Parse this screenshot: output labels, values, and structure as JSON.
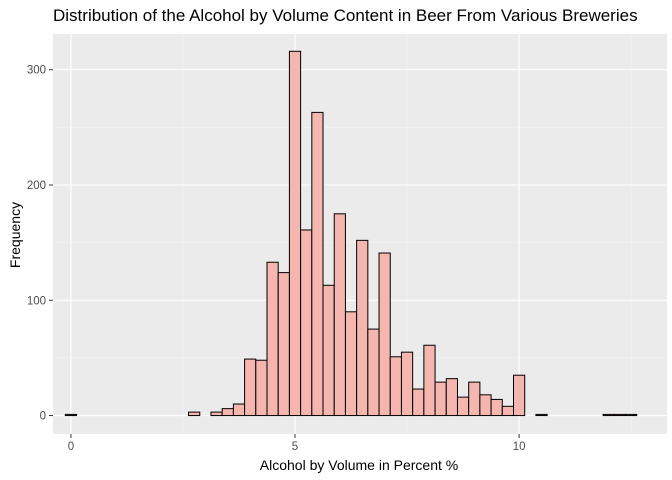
{
  "chart_data": {
    "type": "bar",
    "title": "Distribution of the Alcohol by Volume Content in Beer From Various Breweries",
    "xlabel": "Alcohol by Volume in Percent %",
    "ylabel": "Frequency",
    "xlim": [
      -0.4,
      13.3
    ],
    "ylim": [
      -16,
      331
    ],
    "xticks": [
      0,
      5,
      10
    ],
    "yticks": [
      0,
      100,
      200,
      300
    ],
    "grid": true,
    "bin_width": 0.25,
    "bins": [
      {
        "x": 0.0,
        "count": 1
      },
      {
        "x": 2.75,
        "count": 3
      },
      {
        "x": 3.25,
        "count": 3
      },
      {
        "x": 3.5,
        "count": 6
      },
      {
        "x": 3.75,
        "count": 10
      },
      {
        "x": 4.0,
        "count": 49
      },
      {
        "x": 4.25,
        "count": 48
      },
      {
        "x": 4.5,
        "count": 133
      },
      {
        "x": 4.75,
        "count": 124
      },
      {
        "x": 5.0,
        "count": 316
      },
      {
        "x": 5.25,
        "count": 161
      },
      {
        "x": 5.5,
        "count": 263
      },
      {
        "x": 5.75,
        "count": 113
      },
      {
        "x": 6.0,
        "count": 175
      },
      {
        "x": 6.25,
        "count": 90
      },
      {
        "x": 6.5,
        "count": 152
      },
      {
        "x": 6.75,
        "count": 75
      },
      {
        "x": 7.0,
        "count": 141
      },
      {
        "x": 7.25,
        "count": 51
      },
      {
        "x": 7.5,
        "count": 55
      },
      {
        "x": 7.75,
        "count": 23
      },
      {
        "x": 8.0,
        "count": 61
      },
      {
        "x": 8.25,
        "count": 29
      },
      {
        "x": 8.5,
        "count": 32
      },
      {
        "x": 8.75,
        "count": 16
      },
      {
        "x": 9.0,
        "count": 29
      },
      {
        "x": 9.25,
        "count": 18
      },
      {
        "x": 9.5,
        "count": 14
      },
      {
        "x": 9.75,
        "count": 8
      },
      {
        "x": 10.0,
        "count": 35
      },
      {
        "x": 10.5,
        "count": 1
      },
      {
        "x": 12.0,
        "count": 1
      },
      {
        "x": 12.25,
        "count": 1
      },
      {
        "x": 12.5,
        "count": 1
      }
    ],
    "colors": {
      "panel": "#ebebeb",
      "grid_major": "#ffffff",
      "grid_minor": "#f4f4f4",
      "bar_fill": "#f4b6ae",
      "bar_stroke": "#000000",
      "tick": "#333333"
    }
  }
}
